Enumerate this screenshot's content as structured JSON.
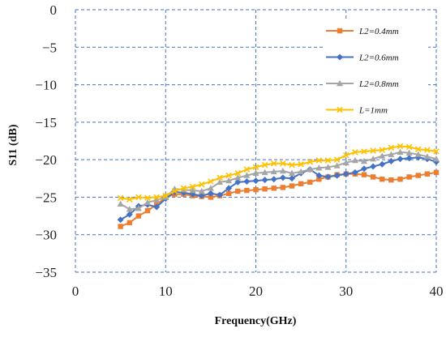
{
  "chart_data": {
    "type": "line",
    "title": "",
    "xlabel": "Frequency(GHz)",
    "ylabel": "S11  (dB)",
    "xlim": [
      0,
      40
    ],
    "ylim": [
      -35,
      0
    ],
    "x_ticks": [
      0,
      10,
      20,
      30,
      40
    ],
    "y_ticks": [
      0,
      -5,
      -10,
      -15,
      -20,
      -25,
      -30,
      -35
    ],
    "grid": "dashed-blue",
    "legend_position": "top-right",
    "x": [
      5,
      6,
      7,
      8,
      9,
      10,
      11,
      12,
      13,
      14,
      15,
      16,
      17,
      18,
      19,
      20,
      21,
      22,
      23,
      24,
      25,
      26,
      27,
      28,
      29,
      30,
      31,
      32,
      33,
      34,
      35,
      36,
      37,
      38,
      39,
      40
    ],
    "series": [
      {
        "name": "L2=0.4mm",
        "color": "#ED7D31",
        "marker": "square",
        "values": [
          -28.9,
          -28.4,
          -27.5,
          -26.8,
          -26.0,
          -25.0,
          -24.6,
          -24.6,
          -24.8,
          -24.9,
          -25.0,
          -24.8,
          -24.5,
          -24.2,
          -24.1,
          -24.0,
          -23.9,
          -23.8,
          -23.7,
          -23.5,
          -23.2,
          -23.0,
          -22.6,
          -22.3,
          -22.0,
          -21.9,
          -21.9,
          -22.0,
          -22.3,
          -22.6,
          -22.7,
          -22.6,
          -22.3,
          -22.1,
          -21.9,
          -21.7
        ]
      },
      {
        "name": "L2=0.6mm",
        "color": "#4472C4",
        "marker": "diamond",
        "values": [
          -28.0,
          -27.3,
          -26.2,
          -26.0,
          -26.3,
          -25.2,
          -24.3,
          -24.4,
          -24.6,
          -24.8,
          -24.5,
          -24.7,
          -23.8,
          -23.0,
          -22.9,
          -22.8,
          -22.7,
          -22.6,
          -22.4,
          -22.5,
          -21.8,
          -21.3,
          -22.1,
          -22.3,
          -22.1,
          -21.9,
          -21.7,
          -21.2,
          -20.9,
          -20.6,
          -20.2,
          -19.9,
          -19.8,
          -19.7,
          -19.9,
          -20.3
        ]
      },
      {
        "name": "L2=0.8mm",
        "color": "#A5A5A5",
        "marker": "triangle",
        "values": [
          -25.9,
          -26.6,
          -26.5,
          -25.7,
          -25.4,
          -25.0,
          -23.9,
          -24.0,
          -24.1,
          -24.2,
          -23.8,
          -23.0,
          -22.8,
          -22.4,
          -22.1,
          -21.8,
          -21.7,
          -21.6,
          -21.5,
          -21.8,
          -21.6,
          -21.3,
          -21.1,
          -21.0,
          -20.8,
          -20.4,
          -20.1,
          -20.2,
          -19.9,
          -19.5,
          -19.3,
          -19.0,
          -19.1,
          -19.3,
          -19.6,
          -19.9
        ]
      },
      {
        "name": "L=1mm",
        "color": "#FFC000",
        "marker": "x",
        "values": [
          -25.1,
          -25.3,
          -25.0,
          -25.1,
          -25.0,
          -24.8,
          -24.2,
          -23.8,
          -23.6,
          -23.3,
          -22.9,
          -22.4,
          -22.1,
          -21.8,
          -21.3,
          -21.0,
          -20.7,
          -20.5,
          -20.5,
          -20.7,
          -20.6,
          -20.3,
          -20.1,
          -20.1,
          -20.0,
          -19.4,
          -19.0,
          -18.9,
          -18.8,
          -18.7,
          -18.4,
          -18.2,
          -18.3,
          -18.6,
          -18.7,
          -18.9
        ]
      }
    ]
  }
}
